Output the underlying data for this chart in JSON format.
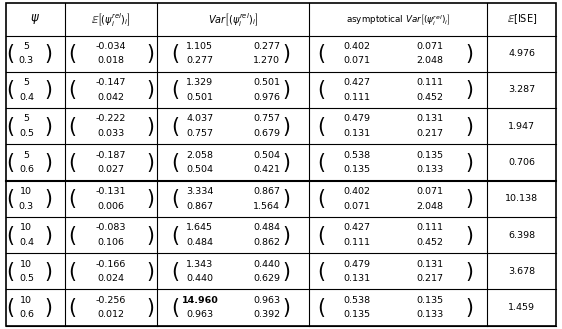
{
  "header": [
    "ψ",
    "\\mathbb{E}\\left[(\\psi_i^{rel})_i\\right]",
    "Var\\left[(\\psi_i^{rel})_i\\right]",
    "asymptotical\\ Var\\left[(\\psi_i^{rel})_i\\right]",
    "\\mathbb{E}[\\text{ISE}]"
  ],
  "rows": [
    {
      "psi": "5\n0.3",
      "E": "-0.034\n0.018",
      "Var_r1": "1.105",
      "Var_r2": "0.277",
      "Var_r3": "0.277",
      "Var_r4": "1.270",
      "aVar_r1": "0.402",
      "aVar_r2": "0.071",
      "aVar_r3": "0.071",
      "aVar_r4": "2.048",
      "ISE": "4.976",
      "bold14960": false
    },
    {
      "psi": "5\n0.4",
      "E": "-0.147\n0.042",
      "Var_r1": "1.329",
      "Var_r2": "0.501",
      "Var_r3": "0.501",
      "Var_r4": "0.976",
      "aVar_r1": "0.427",
      "aVar_r2": "0.111",
      "aVar_r3": "0.111",
      "aVar_r4": "0.452",
      "ISE": "3.287",
      "bold14960": false
    },
    {
      "psi": "5\n0.5",
      "E": "-0.222\n0.033",
      "Var_r1": "4.037",
      "Var_r2": "0.757",
      "Var_r3": "0.757",
      "Var_r4": "0.679",
      "aVar_r1": "0.479",
      "aVar_r2": "0.131",
      "aVar_r3": "0.131",
      "aVar_r4": "0.217",
      "ISE": "1.947",
      "bold14960": false
    },
    {
      "psi": "5\n0.6",
      "E": "-0.187\n0.027",
      "Var_r1": "2.058",
      "Var_r2": "0.504",
      "Var_r3": "0.504",
      "Var_r4": "0.421",
      "aVar_r1": "0.538",
      "aVar_r2": "0.135",
      "aVar_r3": "0.135",
      "aVar_r4": "0.133",
      "ISE": "0.706",
      "bold14960": false
    },
    {
      "psi": "10\n0.3",
      "E": "-0.131\n0.006",
      "Var_r1": "3.334",
      "Var_r2": "0.867",
      "Var_r3": "0.867",
      "Var_r4": "1.564",
      "aVar_r1": "0.402",
      "aVar_r2": "0.071",
      "aVar_r3": "0.071",
      "aVar_r4": "2.048",
      "ISE": "10.138",
      "bold14960": false
    },
    {
      "psi": "10\n0.4",
      "E": "-0.083\n0.106",
      "Var_r1": "1.645",
      "Var_r2": "0.484",
      "Var_r3": "0.484",
      "Var_r4": "0.862",
      "aVar_r1": "0.427",
      "aVar_r2": "0.111",
      "aVar_r3": "0.111",
      "aVar_r4": "0.452",
      "ISE": "6.398",
      "bold14960": false
    },
    {
      "psi": "10\n0.5",
      "E": "-0.166\n0.024",
      "Var_r1": "1.343",
      "Var_r2": "0.440",
      "Var_r3": "0.440",
      "Var_r4": "0.629",
      "aVar_r1": "0.479",
      "aVar_r2": "0.131",
      "aVar_r3": "0.131",
      "aVar_r4": "0.217",
      "ISE": "3.678",
      "bold14960": false
    },
    {
      "psi": "10\n0.6",
      "E": "-0.256\n0.012",
      "Var_r1": "14.960",
      "Var_r2": "0.963",
      "Var_r3": "0.963",
      "Var_r4": "0.392",
      "aVar_r1": "0.538",
      "aVar_r2": "0.135",
      "aVar_r3": "0.135",
      "aVar_r4": "0.133",
      "ISE": "1.459",
      "bold14960": true
    }
  ],
  "thick_line_after_row": 3,
  "figsize": [
    5.62,
    3.29
  ],
  "dpi": 100
}
